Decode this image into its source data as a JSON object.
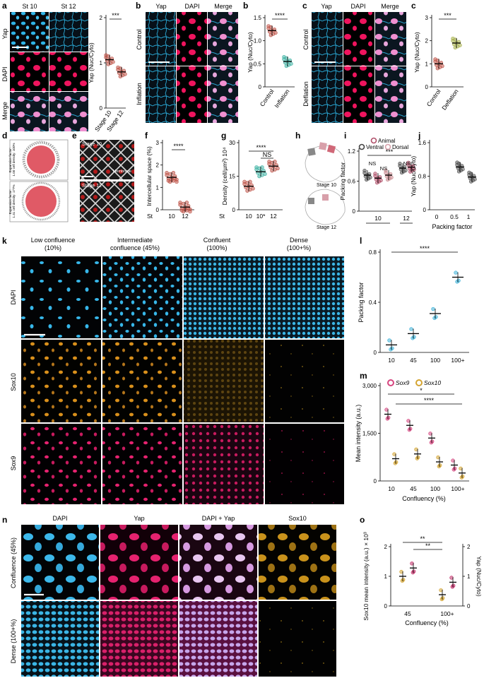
{
  "panels": {
    "a": {
      "letter": "a",
      "col1": "St 10",
      "col2": "St 12",
      "rows": [
        "Yap",
        "DAPI",
        "Merge"
      ]
    },
    "b": {
      "letter": "b",
      "cols": [
        "Yap",
        "DAPI",
        "Merge"
      ],
      "rows": [
        "Control",
        "Inflation"
      ]
    },
    "c": {
      "letter": "c",
      "cols": [
        "Yap",
        "DAPI",
        "Merge"
      ],
      "rows": [
        "Control",
        "Deflation"
      ]
    },
    "d": {
      "letter": "d",
      "top_text": [
        "Expansion factor:",
        "1.00 cell density: 100%"
      ],
      "bottom_text": [
        "Expansion factor:",
        "1.41 cell density: 177%"
      ]
    },
    "e": {
      "letter": "e",
      "top": "Stage 10",
      "bottom": "Stage 12",
      "membrane": "Membrane"
    },
    "h": {
      "letter": "h",
      "top": "Stage 10",
      "bottom": "Stage 12"
    },
    "k": {
      "letter": "k",
      "cols": [
        [
          "Low confluence",
          "(10%)"
        ],
        [
          "Intermediate",
          "confluence (45%)"
        ],
        [
          "Confluent",
          "(100%)"
        ],
        [
          "Dense",
          "(100+%)"
        ]
      ],
      "rows": [
        "DAPI",
        "Sox10",
        "Sox9"
      ]
    },
    "n": {
      "letter": "n",
      "cols": [
        "DAPI",
        "Yap",
        "DAPI + Yap",
        "Sox10"
      ],
      "rows": [
        "Confluence (45%)",
        "Dense (100+%)"
      ]
    }
  },
  "chart_data": [
    {
      "id": "a",
      "type": "scatter",
      "ylabel": "Yap (Nuc/Cyto)",
      "categories": [
        "Stage 10",
        "Stage 12"
      ],
      "yticks": [
        "0",
        "1",
        "2"
      ],
      "ylim": [
        0,
        2
      ],
      "means": [
        1.07,
        0.8
      ],
      "sig": "***",
      "color": "#c0564a"
    },
    {
      "id": "b",
      "type": "scatter",
      "ylabel": "Yap (Nuc/Cyto)",
      "categories": [
        "Control",
        "Inflation"
      ],
      "yticks": [
        "0",
        "0.5",
        "1.0",
        "1.5"
      ],
      "ylim": [
        0,
        1.5
      ],
      "means": [
        1.22,
        0.55
      ],
      "sig": "****",
      "colors": [
        "#c0564a",
        "#3fb3a4"
      ]
    },
    {
      "id": "c",
      "type": "scatter",
      "ylabel": "Yap (Nuc/Cyto)",
      "categories": [
        "Control",
        "Deflation"
      ],
      "yticks": [
        "0",
        "1",
        "2",
        "3"
      ],
      "ylim": [
        0,
        3
      ],
      "means": [
        1.0,
        1.9
      ],
      "sig": "***",
      "colors": [
        "#c0564a",
        "#a6b04a"
      ]
    },
    {
      "id": "f",
      "type": "scatter",
      "ylabel": "Intercellular space (%)",
      "xprefix": "St",
      "categories": [
        "10",
        "12"
      ],
      "yticks": [
        "0",
        "1",
        "2",
        "3"
      ],
      "ylim": [
        0,
        3
      ],
      "means": [
        1.45,
        0.12
      ],
      "sig": "****",
      "color": "#c0564a"
    },
    {
      "id": "g",
      "type": "scatter",
      "ylabel": "Density (cell/µm²) 10⁴",
      "xprefix": "St",
      "categories": [
        "10",
        "10*",
        "12"
      ],
      "yticks": [
        "0",
        "15",
        "30"
      ],
      "ylim": [
        0,
        30
      ],
      "means": [
        10.5,
        17,
        19.5
      ],
      "sig": "****",
      "sig2": "NS",
      "colors": [
        "#c0564a",
        "#3fb3a4",
        "#c0564a"
      ]
    },
    {
      "id": "i",
      "type": "scatter",
      "ylabel": "Packing factor",
      "categories": [
        "10",
        "12"
      ],
      "legend": [
        "Animal",
        "Ventral",
        "Dorsal"
      ],
      "yticks": [
        "0",
        "0.6",
        "1.2"
      ],
      "ylim": [
        0,
        1.2
      ],
      "means": [
        0.72,
        0.66,
        0.72,
        0.86,
        0.88
      ],
      "sig": "***",
      "ns": [
        "NS",
        "NS",
        "NS"
      ]
    },
    {
      "id": "j",
      "type": "scatter",
      "ylabel": "Yap (Nuc/Cyto)",
      "xlabel": "Packing factor",
      "xticks": [
        "0",
        "0.5",
        "1"
      ],
      "yticks": [
        "0",
        "0.8",
        "1.6"
      ],
      "ylim": [
        0,
        1.6
      ],
      "means": [
        1.02,
        0.78
      ]
    },
    {
      "id": "l",
      "type": "scatter",
      "ylabel": "Packing factor",
      "categories": [
        "10",
        "45",
        "100",
        "100+"
      ],
      "yticks": [
        "0",
        "0.4",
        "0.8"
      ],
      "ylim": [
        0,
        0.8
      ],
      "means": [
        0.06,
        0.15,
        0.31,
        0.6
      ],
      "sig": "****",
      "color": "#3fb3d9"
    },
    {
      "id": "m",
      "type": "scatter",
      "ylabel": "Mean intensity (a.u.)",
      "xlabel": "Confluency (%)",
      "categories": [
        "10",
        "45",
        "100",
        "100+"
      ],
      "legend": [
        "Sox9",
        "Sox10"
      ],
      "yticks": [
        "0",
        "1,500",
        "3,000"
      ],
      "ylim": [
        0,
        3000
      ],
      "series": [
        {
          "name": "Sox9",
          "values": [
            2100,
            1750,
            1350,
            500
          ]
        },
        {
          "name": "Sox10",
          "values": [
            700,
            850,
            600,
            250
          ]
        }
      ],
      "sig": [
        "*",
        "****"
      ],
      "colors": [
        "#d6457f",
        "#d4a431"
      ]
    },
    {
      "id": "o",
      "type": "scatter",
      "ylabel": "Sox10 mean intensity (a.u.) × 10³",
      "ylabel_right": "Yap (Nuc/Cyto)",
      "xlabel": "Confluency (%)",
      "categories": [
        "45",
        "100+"
      ],
      "yticks": [
        "0",
        "1",
        "2"
      ],
      "ylim": [
        0,
        2
      ],
      "series": [
        {
          "name": "Sox10",
          "values": [
            1.0,
            0.38
          ]
        },
        {
          "name": "Yap",
          "values": [
            1.28,
            0.8
          ]
        }
      ],
      "sig": [
        "**",
        "**"
      ],
      "colors": [
        "#d4a431",
        "#c2306a"
      ]
    }
  ]
}
